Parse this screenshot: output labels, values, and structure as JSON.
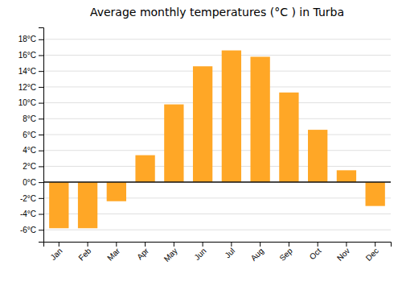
{
  "chart_data": {
    "type": "bar",
    "title": "Average monthly temperatures (°C ) in Turba",
    "categories": [
      "Jan",
      "Feb",
      "Mar",
      "Apr",
      "May",
      "Jun",
      "Jul",
      "Aug",
      "Sep",
      "Oct",
      "Nov",
      "Dec"
    ],
    "values": [
      -5.8,
      -5.8,
      -2.4,
      3.4,
      9.8,
      14.6,
      16.6,
      15.8,
      11.3,
      6.6,
      1.5,
      -3.0
    ],
    "color": "#FFA726",
    "ylim": [
      -7.5,
      19.5
    ],
    "yticks": [
      {
        "value": -6,
        "label": "-6°C"
      },
      {
        "value": -4,
        "label": "-4°C"
      },
      {
        "value": -2,
        "label": "-2°C"
      },
      {
        "value": 0,
        "label": "0°C"
      },
      {
        "value": 2,
        "label": "2°C"
      },
      {
        "value": 4,
        "label": "4°C"
      },
      {
        "value": 6,
        "label": "6°C"
      },
      {
        "value": 8,
        "label": "8°C"
      },
      {
        "value": 10,
        "label": "10°C"
      },
      {
        "value": 12,
        "label": "12°C"
      },
      {
        "value": 14,
        "label": "14°C"
      },
      {
        "value": 16,
        "label": "16°C"
      },
      {
        "value": 18,
        "label": "18°C"
      }
    ],
    "grid": true
  }
}
